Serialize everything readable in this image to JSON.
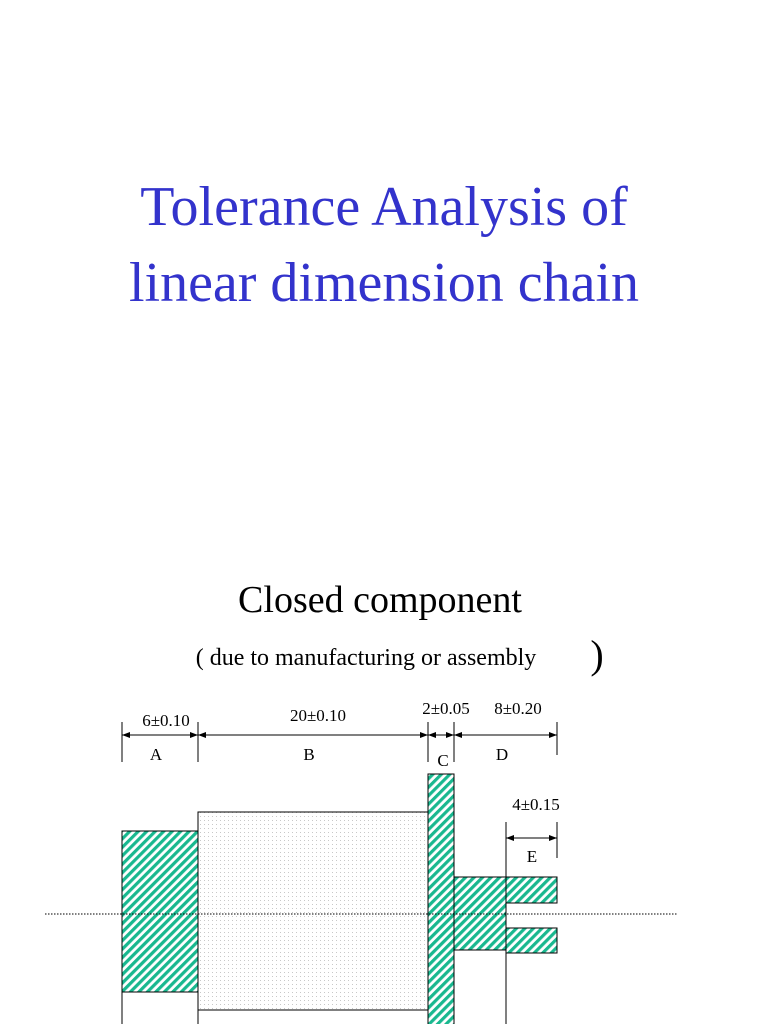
{
  "title": {
    "lines": [
      "Tolerance Analysis of",
      "linear dimension chain"
    ]
  },
  "subtitle": "Closed component",
  "note": {
    "text": "( due to manufacturing or assembly",
    "close": ")"
  },
  "dimensions": [
    {
      "label": "A",
      "tolerance": "6±0.10"
    },
    {
      "label": "B",
      "tolerance": "20±0.10"
    },
    {
      "label": "C",
      "tolerance": "2±0.05"
    },
    {
      "label": "D",
      "tolerance": "8±0.20"
    },
    {
      "label": "E",
      "tolerance": "4±0.15"
    }
  ]
}
